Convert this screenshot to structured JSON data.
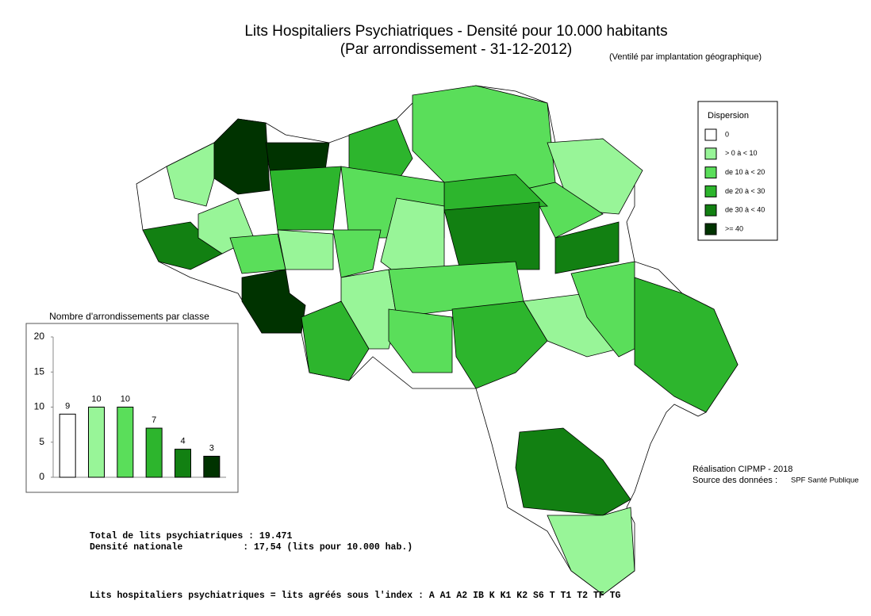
{
  "header": {
    "title": "Lits Hospitaliers Psychiatriques  - Densité pour 10.000 habitants",
    "subtitle": "(Par arrondissement - 31-12-2012)",
    "note": "(Ventilé par implantation géographique)"
  },
  "legend": {
    "title": "Dispersion",
    "items": [
      {
        "label": "0",
        "color": "#ffffff"
      },
      {
        "label": "> 0 à < 10",
        "color": "#98f598"
      },
      {
        "label": "de 10 à < 20",
        "color": "#5ade5a"
      },
      {
        "label": "de 20 à < 30",
        "color": "#2db52d"
      },
      {
        "label": "de 30 à < 40",
        "color": "#128012"
      },
      {
        "label": ">= 40",
        "color": "#003300"
      }
    ]
  },
  "chart_data": {
    "type": "bar",
    "title": "Nombre d'arrondissements par classe",
    "values": [
      9,
      10,
      10,
      7,
      4,
      3
    ],
    "colors": [
      "#ffffff",
      "#98f598",
      "#5ade5a",
      "#2db52d",
      "#128012",
      "#003300"
    ],
    "ylim": [
      0,
      20
    ],
    "yticks": [
      0,
      5,
      10,
      15,
      20
    ]
  },
  "credits": {
    "made_by": "Réalisation CIPMP - 2018",
    "source_label": "Source des données : ",
    "source": "SPF Santé Publique"
  },
  "summary": [
    "Total de lits psychiatriques : 19.471",
    "Densité nationale           : 17,54 (lits pour 10.000 hab.)"
  ],
  "footer": "Lits hospitaliers psychiatriques = lits agréés sous l'index : A A1 A2 IB K K1 K2 S6 T T1 T2 TF TG"
}
